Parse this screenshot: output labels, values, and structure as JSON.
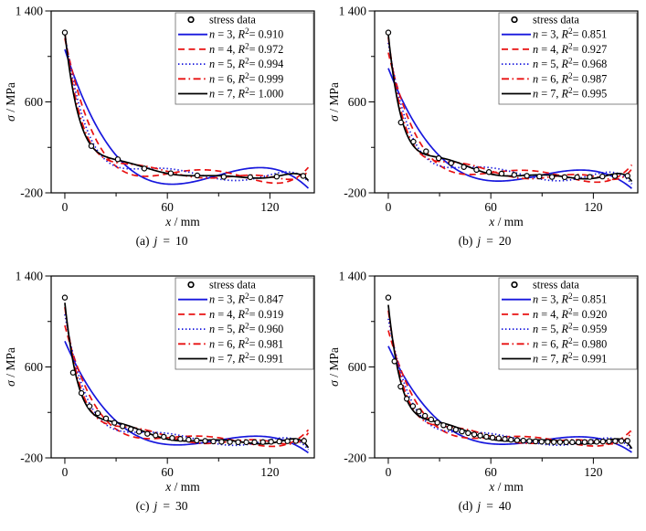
{
  "chart_data": {
    "type": "scatter",
    "description": "2x2 grid of stress-vs-distance plots, each with measured stress data points and five polynomial fit curves of order n=3..7",
    "xlabel": {
      "variable": "x",
      "separator": " / ",
      "unit": "mm"
    },
    "ylabel": {
      "variable": "σ",
      "separator": " / ",
      "unit": "MPa"
    },
    "xlim": [
      -8,
      146
    ],
    "ylim": [
      -200,
      1400
    ],
    "x_ticks_major": [
      0,
      60,
      120
    ],
    "x_tick_labels": [
      "0",
      "60",
      "120"
    ],
    "x_ticks_minor": [
      30,
      90
    ],
    "y_ticks_major": [
      -200,
      600,
      1400
    ],
    "y_tick_labels": [
      "-200",
      "600",
      "1 400"
    ],
    "y_ticks_minor": [
      200,
      1000
    ],
    "grid": false,
    "legend_position": "top-right",
    "legend_marker_label": "stress data",
    "legend_n_prefix": "n",
    "legend_r_symbol": "R",
    "legend_r_sup": "2",
    "styles": {
      "blue": "#1717dd",
      "red": "#e81111",
      "black": "#000000",
      "frame": "#000000",
      "legend_border": "#666666",
      "dash_patterns": {
        "solid": "",
        "dashed": "7 4.5",
        "dotted": "1.4 2.6",
        "dashdot": "8 3.5 1.6 3.5"
      }
    },
    "subplots": [
      {
        "id": "a",
        "caption": {
          "prefix": "(a)",
          "variable": "j",
          "equals": "=",
          "value": "10"
        },
        "points": {
          "x": [
            0,
            15.5,
            31,
            46.5,
            62,
            77.5,
            93,
            108.5,
            124,
            139.5
          ],
          "y": [
            1210,
            212,
            95,
            14,
            -28,
            -47,
            -59,
            -62,
            -57,
            -51
          ]
        },
        "fits": [
          {
            "n": 3,
            "r2": "0.910",
            "color": "blue",
            "pattern": "solid"
          },
          {
            "n": 4,
            "r2": "0.972",
            "color": "red",
            "pattern": "dashed"
          },
          {
            "n": 5,
            "r2": "0.994",
            "color": "blue",
            "pattern": "dotted"
          },
          {
            "n": 6,
            "r2": "0.999",
            "color": "red",
            "pattern": "dashdot"
          },
          {
            "n": 7,
            "r2": "1.000",
            "color": "black",
            "pattern": "solid"
          }
        ]
      },
      {
        "id": "b",
        "caption": {
          "prefix": "(b)",
          "variable": "j",
          "equals": "=",
          "value": "20"
        },
        "points": {
          "x": [
            0,
            7.4,
            14.7,
            22.1,
            29.5,
            36.8,
            44.2,
            51.6,
            58.9,
            66.3,
            73.7,
            81.1,
            88.4,
            95.8,
            103.2,
            110.5,
            117.9,
            125.3,
            132.6,
            140
          ],
          "y": [
            1210,
            419,
            250,
            165,
            105,
            61,
            27,
            2,
            -17,
            -31,
            -42,
            -50,
            -56,
            -60,
            -62,
            -62,
            -60,
            -56,
            -52,
            -50
          ]
        },
        "fits": [
          {
            "n": 3,
            "r2": "0.851",
            "color": "blue",
            "pattern": "solid"
          },
          {
            "n": 4,
            "r2": "0.927",
            "color": "red",
            "pattern": "dashed"
          },
          {
            "n": 5,
            "r2": "0.968",
            "color": "blue",
            "pattern": "dotted"
          },
          {
            "n": 6,
            "r2": "0.987",
            "color": "red",
            "pattern": "dashdot"
          },
          {
            "n": 7,
            "r2": "0.995",
            "color": "black",
            "pattern": "solid"
          }
        ]
      },
      {
        "id": "c",
        "caption": {
          "prefix": "(c)",
          "variable": "j",
          "equals": "=",
          "value": "30"
        },
        "points": {
          "x": [
            0,
            4.8,
            9.7,
            14.5,
            19.3,
            24.1,
            29,
            33.8,
            38.6,
            43.4,
            48.3,
            53.1,
            57.9,
            62.8,
            67.6,
            72.4,
            77.2,
            82.1,
            86.9,
            91.7,
            96.6,
            101.4,
            106.2,
            111,
            115.9,
            120.7,
            125.5,
            130.3,
            135.2,
            140
          ],
          "y": [
            1210,
            550,
            370,
            254,
            193,
            147,
            109,
            78,
            52,
            30,
            12,
            -2,
            -15,
            -25,
            -33,
            -40,
            -46,
            -51,
            -55,
            -58,
            -60,
            -62,
            -62,
            -62,
            -61,
            -58,
            -56,
            -53,
            -51,
            -50
          ]
        },
        "fits": [
          {
            "n": 3,
            "r2": "0.847",
            "color": "blue",
            "pattern": "solid"
          },
          {
            "n": 4,
            "r2": "0.919",
            "color": "red",
            "pattern": "dashed"
          },
          {
            "n": 5,
            "r2": "0.960",
            "color": "blue",
            "pattern": "dotted"
          },
          {
            "n": 6,
            "r2": "0.981",
            "color": "red",
            "pattern": "dashdot"
          },
          {
            "n": 7,
            "r2": "0.991",
            "color": "black",
            "pattern": "solid"
          }
        ]
      },
      {
        "id": "d",
        "caption": {
          "prefix": "(d)",
          "variable": "j",
          "equals": "=",
          "value": "40"
        },
        "points": {
          "x": [
            0,
            3.6,
            7.2,
            10.8,
            14.4,
            17.9,
            21.5,
            25.1,
            28.7,
            32.3,
            35.9,
            39.5,
            43.1,
            46.7,
            50.3,
            53.8,
            57.4,
            61,
            64.6,
            68.2,
            71.8,
            75.4,
            79,
            82.6,
            86.2,
            89.7,
            93.3,
            96.9,
            100.5,
            104.1,
            107.7,
            111.3,
            114.9,
            118.5,
            122,
            125.6,
            129.2,
            132.8,
            136.4,
            140
          ],
          "y": [
            1210,
            649,
            427,
            320,
            255,
            208,
            170,
            138,
            111,
            87,
            66,
            48,
            32,
            18,
            6,
            -4,
            -14,
            -22,
            -28,
            -34,
            -40,
            -44,
            -48,
            -52,
            -55,
            -57,
            -59,
            -61,
            -61,
            -62,
            -62,
            -62,
            -61,
            -59,
            -58,
            -56,
            -54,
            -52,
            -51,
            -50
          ]
        },
        "fits": [
          {
            "n": 3,
            "r2": "0.851",
            "color": "blue",
            "pattern": "solid"
          },
          {
            "n": 4,
            "r2": "0.920",
            "color": "red",
            "pattern": "dashed"
          },
          {
            "n": 5,
            "r2": "0.959",
            "color": "blue",
            "pattern": "dotted"
          },
          {
            "n": 6,
            "r2": "0.980",
            "color": "red",
            "pattern": "dashdot"
          },
          {
            "n": 7,
            "r2": "0.991",
            "color": "black",
            "pattern": "solid"
          }
        ]
      }
    ]
  }
}
